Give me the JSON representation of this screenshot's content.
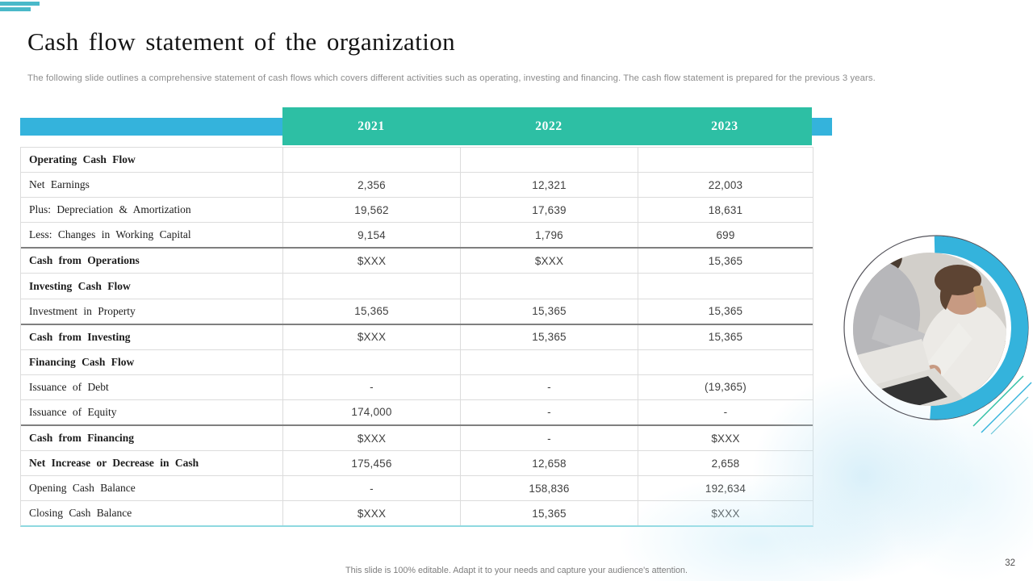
{
  "header": {
    "title": "Cash flow statement of the organization",
    "subtitle": "The following slide outlines a comprehensive statement of cash flows which covers different activities such as operating, investing and financing. The cash flow statement is prepared for the previous 3 years."
  },
  "table": {
    "years": [
      "2021",
      "2022",
      "2023"
    ],
    "rows": [
      {
        "label": "Operating Cash Flow",
        "values": [
          "",
          "",
          ""
        ],
        "style": "section"
      },
      {
        "label": "Net Earnings",
        "values": [
          "2,356",
          "12,321",
          "22,003"
        ],
        "style": ""
      },
      {
        "label": "Plus: Depreciation & Amortization",
        "values": [
          "19,562",
          "17,639",
          "18,631"
        ],
        "style": ""
      },
      {
        "label": "Less: Changes in Working Capital",
        "values": [
          "9,154",
          "1,796",
          "699"
        ],
        "style": ""
      },
      {
        "label": "Cash from Operations",
        "values": [
          "$XXX",
          "$XXX",
          "15,365"
        ],
        "style": "total"
      },
      {
        "label": "Investing Cash Flow",
        "values": [
          "",
          "",
          ""
        ],
        "style": "section"
      },
      {
        "label": "Investment in Property",
        "values": [
          "15,365",
          "15,365",
          "15,365"
        ],
        "style": ""
      },
      {
        "label": "Cash from Investing",
        "values": [
          "$XXX",
          "15,365",
          "15,365"
        ],
        "style": "total"
      },
      {
        "label": "Financing Cash Flow",
        "values": [
          "",
          "",
          ""
        ],
        "style": "section"
      },
      {
        "label": "Issuance of Debt",
        "values": [
          "-",
          "-",
          "(19,365)"
        ],
        "style": ""
      },
      {
        "label": "Issuance of Equity",
        "values": [
          "174,000",
          "-",
          "-"
        ],
        "style": ""
      },
      {
        "label": "Cash from Financing",
        "values": [
          "$XXX",
          "-",
          "$XXX"
        ],
        "style": "total"
      },
      {
        "label": "Net Increase or Decrease in Cash",
        "values": [
          "175,456",
          "12,658",
          "2,658"
        ],
        "style": "boldrow"
      },
      {
        "label": "Opening Cash Balance",
        "values": [
          "-",
          "158,836",
          "192,634"
        ],
        "style": ""
      },
      {
        "label": "Closing Cash Balance",
        "values": [
          "$XXX",
          "15,365",
          "$XXX"
        ],
        "style": ""
      }
    ]
  },
  "footer": {
    "note": "This slide is 100% editable.  Adapt it to your needs and capture your audience's attention.",
    "page_number": "32"
  },
  "decor": {
    "photo_subject": "two people working on a laptop, one talking on phone",
    "colors": {
      "teal_header": "#2dbfa4",
      "blue_accent": "#34b3dc",
      "corner_stripe": "#4ab9c9",
      "table_bottom_border": "#8fd9e0",
      "total_row_border": "#7f7f7f"
    }
  }
}
